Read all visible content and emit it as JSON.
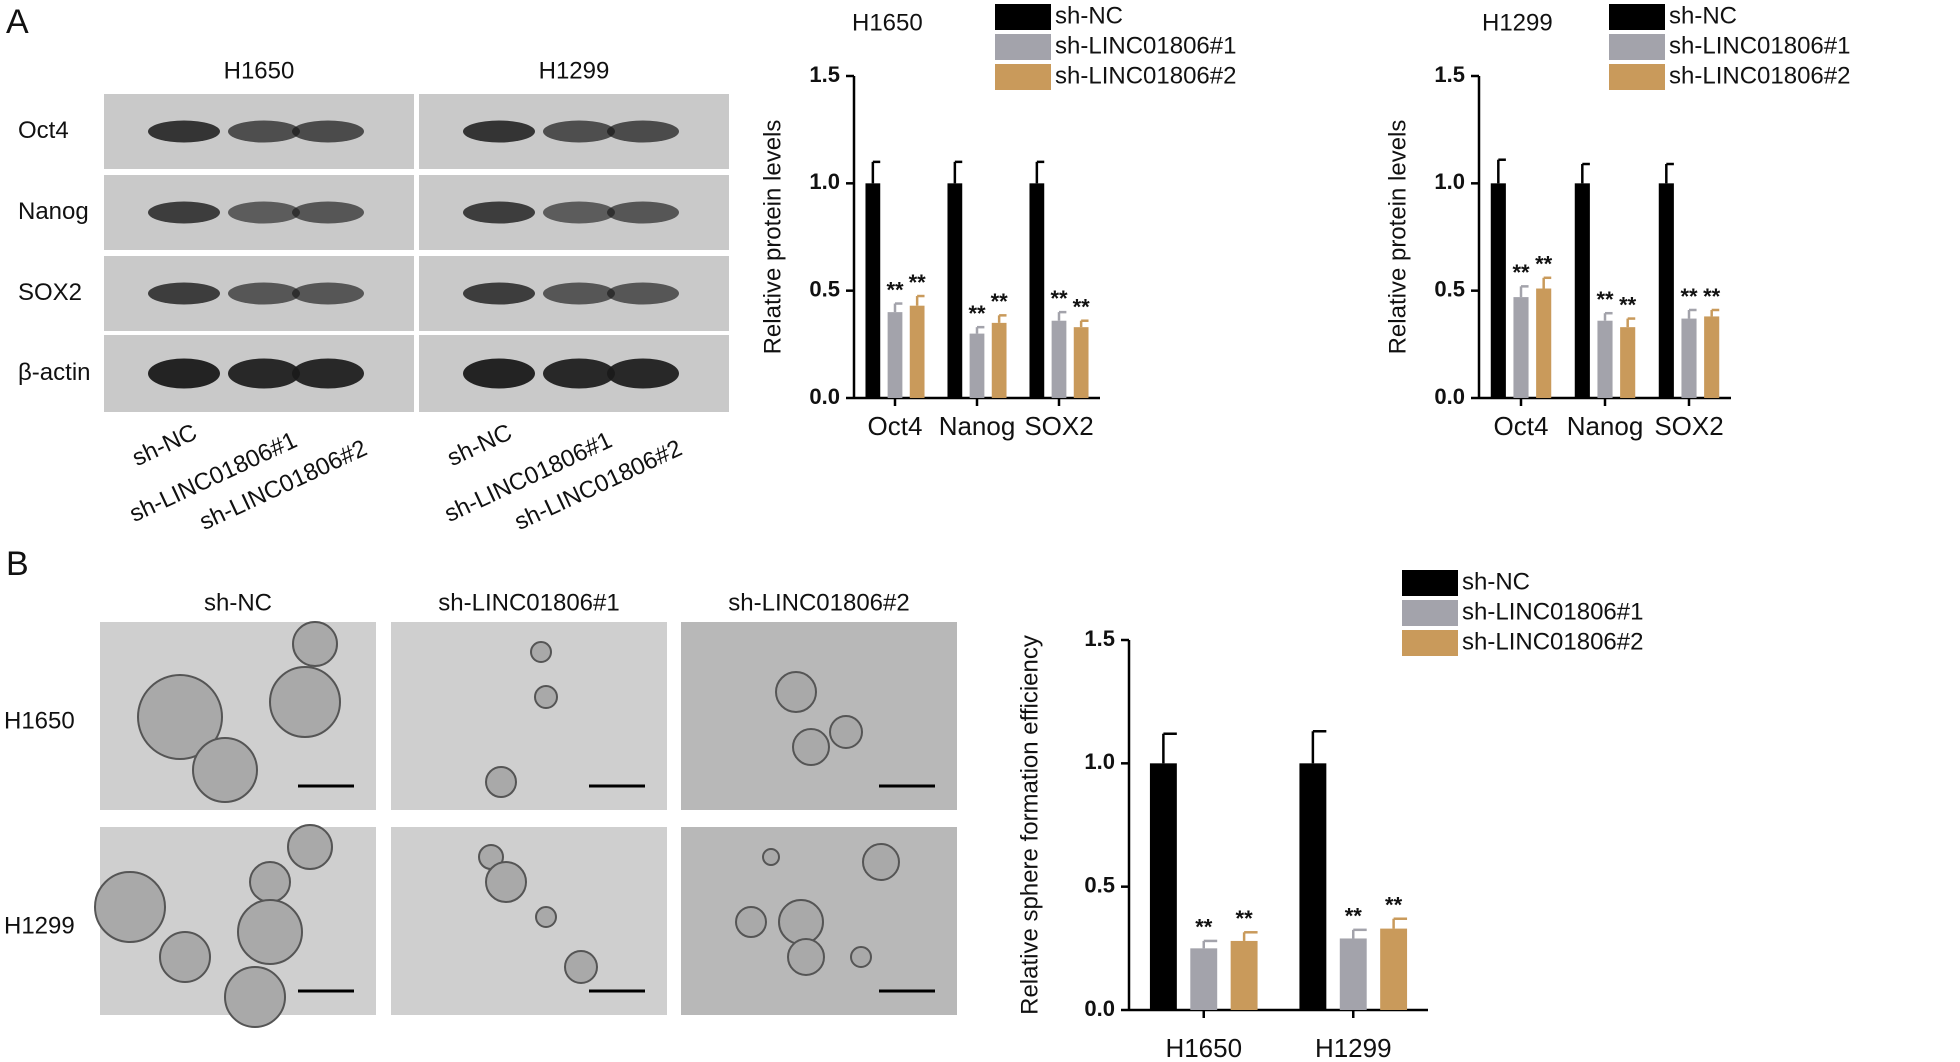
{
  "blot": {
    "panel_label": "A",
    "cell_lines": [
      "H1650",
      "H1299"
    ],
    "proteins": [
      "Oct4",
      "Nanog",
      "SOX2",
      "β-actin"
    ],
    "lanes": [
      "sh-NC",
      "sh-LINC01806#1",
      "sh-LINC01806#2"
    ]
  },
  "spheres": {
    "panel_label": "B",
    "columns": [
      "sh-NC",
      "sh-LINC01806#1",
      "sh-LINC01806#2"
    ],
    "rows": [
      "H1650",
      "H1299"
    ]
  },
  "chart_data": [
    {
      "type": "bar",
      "title": "H1650",
      "y_label": "Relative protein levels",
      "categories": [
        "Oct4",
        "Nanog",
        "SOX2"
      ],
      "series": [
        {
          "name": "sh-NC",
          "color": "#000000",
          "values": [
            1.0,
            1.0,
            1.0
          ],
          "errors": [
            0.1,
            0.1,
            0.1
          ]
        },
        {
          "name": "sh-LINC01806#1",
          "color": "#a3a3ab",
          "values": [
            0.4,
            0.3,
            0.36
          ],
          "errors": [
            0.04,
            0.03,
            0.04
          ],
          "annotations": [
            "**",
            "**",
            "**"
          ]
        },
        {
          "name": "sh-LINC01806#2",
          "color": "#c99a5b",
          "values": [
            0.43,
            0.35,
            0.33
          ],
          "errors": [
            0.045,
            0.035,
            0.03
          ],
          "annotations": [
            "**",
            "**",
            "**"
          ]
        }
      ],
      "ylim": [
        0,
        1.5
      ],
      "yticks": [
        {
          "value": 0,
          "label": "0.0"
        },
        0.5,
        {
          "value": 1,
          "label": "1.0"
        },
        1.5
      ]
    },
    {
      "type": "bar",
      "title": "H1299",
      "y_label": "Relative protein levels",
      "categories": [
        "Oct4",
        "Nanog",
        "SOX2"
      ],
      "series": [
        {
          "name": "sh-NC",
          "color": "#000000",
          "values": [
            1.0,
            1.0,
            1.0
          ],
          "errors": [
            0.11,
            0.09,
            0.09
          ]
        },
        {
          "name": "sh-LINC01806#1",
          "color": "#a3a3ab",
          "values": [
            0.47,
            0.36,
            0.37
          ],
          "errors": [
            0.05,
            0.035,
            0.04
          ],
          "annotations": [
            "**",
            "**",
            "**"
          ]
        },
        {
          "name": "sh-LINC01806#2",
          "color": "#c99a5b",
          "values": [
            0.51,
            0.33,
            0.38
          ],
          "errors": [
            0.05,
            0.04,
            0.03
          ],
          "annotations": [
            "**",
            "**",
            "**"
          ]
        }
      ],
      "ylim": [
        0,
        1.5
      ],
      "yticks": [
        {
          "value": 0,
          "label": "0.0"
        },
        0.5,
        {
          "value": 1,
          "label": "1.0"
        },
        1.5
      ]
    },
    {
      "type": "bar",
      "y_label": "Relative sphere formation efficiency",
      "categories": [
        "H1650",
        "H1299"
      ],
      "series": [
        {
          "name": "sh-NC",
          "color": "#000000",
          "values": [
            1.0,
            1.0
          ],
          "errors": [
            0.12,
            0.13
          ]
        },
        {
          "name": "sh-LINC01806#1",
          "color": "#a3a3ab",
          "values": [
            0.25,
            0.29
          ],
          "errors": [
            0.03,
            0.035
          ],
          "annotations": [
            "**",
            "**"
          ]
        },
        {
          "name": "sh-LINC01806#2",
          "color": "#c99a5b",
          "values": [
            0.28,
            0.33
          ],
          "errors": [
            0.035,
            0.04
          ],
          "annotations": [
            "**",
            "**"
          ]
        }
      ],
      "ylim": [
        0,
        1.5
      ],
      "yticks": [
        {
          "value": 0,
          "label": "0.0"
        },
        0.5,
        {
          "value": 1,
          "label": "1.0"
        },
        1.5
      ]
    }
  ]
}
